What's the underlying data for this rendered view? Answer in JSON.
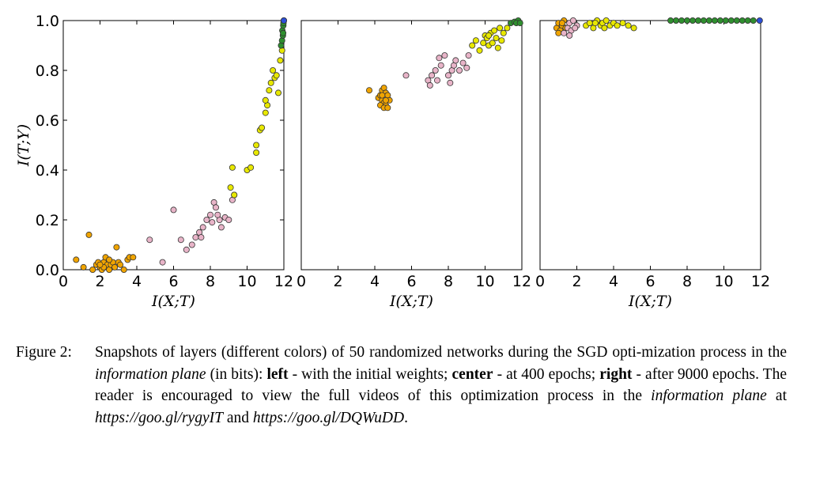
{
  "chart_data": [
    {
      "type": "scatter",
      "panel": "left",
      "xlabel": "I(X;T)",
      "ylabel": "I(T;Y)",
      "xlim": [
        0,
        12
      ],
      "ylim": [
        0,
        1.0
      ],
      "xticks": [
        "0",
        "2",
        "4",
        "6",
        "8",
        "10",
        "12"
      ],
      "yticks": [
        "0.0",
        "0.2",
        "0.4",
        "0.6",
        "0.8",
        "1.0"
      ],
      "grid": false,
      "series": [
        {
          "color": "#f0a400",
          "points": [
            [
              0.7,
              0.04
            ],
            [
              1.1,
              0.01
            ],
            [
              1.4,
              0.14
            ],
            [
              1.6,
              0.0
            ],
            [
              1.8,
              0.02
            ],
            [
              1.9,
              0.03
            ],
            [
              2.0,
              0.01
            ],
            [
              2.1,
              0.0
            ],
            [
              2.2,
              0.03
            ],
            [
              2.3,
              0.05
            ],
            [
              2.4,
              0.02
            ],
            [
              2.5,
              0.0
            ],
            [
              2.6,
              0.02
            ],
            [
              2.7,
              0.03
            ],
            [
              2.8,
              0.01
            ],
            [
              2.9,
              0.09
            ],
            [
              3.0,
              0.03
            ],
            [
              3.1,
              0.02
            ],
            [
              3.3,
              0.0
            ],
            [
              3.5,
              0.04
            ],
            [
              3.6,
              0.05
            ],
            [
              3.8,
              0.05
            ],
            [
              2.2,
              0.01
            ],
            [
              2.5,
              0.04
            ],
            [
              2.0,
              0.02
            ]
          ]
        },
        {
          "color": "#e8b4c8",
          "points": [
            [
              4.7,
              0.12
            ],
            [
              5.4,
              0.03
            ],
            [
              6.0,
              0.24
            ],
            [
              6.4,
              0.12
            ],
            [
              6.7,
              0.08
            ],
            [
              7.0,
              0.1
            ],
            [
              7.2,
              0.13
            ],
            [
              7.4,
              0.15
            ],
            [
              7.6,
              0.17
            ],
            [
              7.8,
              0.2
            ],
            [
              8.0,
              0.22
            ],
            [
              8.1,
              0.19
            ],
            [
              8.2,
              0.27
            ],
            [
              8.3,
              0.25
            ],
            [
              8.5,
              0.2
            ],
            [
              8.6,
              0.17
            ],
            [
              8.8,
              0.21
            ],
            [
              9.0,
              0.2
            ],
            [
              9.2,
              0.28
            ],
            [
              9.3,
              0.3
            ],
            [
              8.4,
              0.22
            ],
            [
              7.5,
              0.13
            ]
          ]
        },
        {
          "color": "#e8e800",
          "points": [
            [
              9.1,
              0.33
            ],
            [
              9.2,
              0.41
            ],
            [
              9.3,
              0.3
            ],
            [
              10.0,
              0.4
            ],
            [
              10.2,
              0.41
            ],
            [
              10.5,
              0.47
            ],
            [
              10.5,
              0.5
            ],
            [
              10.7,
              0.56
            ],
            [
              10.8,
              0.57
            ],
            [
              11.0,
              0.63
            ],
            [
              11.1,
              0.66
            ],
            [
              11.0,
              0.68
            ],
            [
              11.2,
              0.72
            ],
            [
              11.3,
              0.75
            ],
            [
              11.5,
              0.77
            ],
            [
              11.4,
              0.8
            ],
            [
              11.6,
              0.78
            ],
            [
              11.8,
              0.84
            ],
            [
              11.9,
              0.88
            ],
            [
              11.7,
              0.71
            ]
          ]
        },
        {
          "color": "#2f8f2f",
          "points": [
            [
              11.85,
              0.9
            ],
            [
              11.9,
              0.92
            ],
            [
              11.95,
              0.94
            ],
            [
              11.92,
              0.96
            ],
            [
              11.97,
              0.98
            ],
            [
              12.0,
              1.0
            ],
            [
              11.98,
              0.99
            ],
            [
              11.96,
              0.95
            ]
          ]
        },
        {
          "color": "#2c4fd8",
          "points": [
            [
              12.0,
              1.0
            ]
          ]
        }
      ]
    },
    {
      "type": "scatter",
      "panel": "center",
      "xlabel": "I(X;T)",
      "ylabel": "",
      "xlim": [
        0,
        12
      ],
      "ylim": [
        0,
        1.0
      ],
      "xticks": [
        "0",
        "2",
        "4",
        "6",
        "8",
        "10",
        "12"
      ],
      "yticks": [],
      "grid": false,
      "series": [
        {
          "color": "#f0a400",
          "points": [
            [
              3.7,
              0.72
            ],
            [
              4.2,
              0.69
            ],
            [
              4.3,
              0.7
            ],
            [
              4.4,
              0.72
            ],
            [
              4.5,
              0.73
            ],
            [
              4.6,
              0.71
            ],
            [
              4.4,
              0.68
            ],
            [
              4.5,
              0.67
            ],
            [
              4.6,
              0.66
            ],
            [
              4.7,
              0.7
            ],
            [
              4.8,
              0.68
            ],
            [
              4.3,
              0.66
            ],
            [
              4.5,
              0.65
            ],
            [
              4.6,
              0.68
            ],
            [
              4.4,
              0.7
            ],
            [
              4.7,
              0.65
            ]
          ]
        },
        {
          "color": "#e8b4c8",
          "points": [
            [
              5.7,
              0.78
            ],
            [
              6.9,
              0.76
            ],
            [
              7.0,
              0.74
            ],
            [
              7.1,
              0.78
            ],
            [
              7.3,
              0.8
            ],
            [
              7.4,
              0.76
            ],
            [
              7.6,
              0.82
            ],
            [
              7.8,
              0.86
            ],
            [
              8.0,
              0.78
            ],
            [
              8.2,
              0.8
            ],
            [
              8.3,
              0.82
            ],
            [
              8.4,
              0.84
            ],
            [
              8.6,
              0.8
            ],
            [
              8.8,
              0.83
            ],
            [
              9.0,
              0.81
            ],
            [
              9.1,
              0.86
            ],
            [
              7.5,
              0.85
            ],
            [
              8.1,
              0.75
            ]
          ]
        },
        {
          "color": "#e8e800",
          "points": [
            [
              9.3,
              0.9
            ],
            [
              9.5,
              0.92
            ],
            [
              9.7,
              0.88
            ],
            [
              9.9,
              0.91
            ],
            [
              10.0,
              0.94
            ],
            [
              10.1,
              0.93
            ],
            [
              10.2,
              0.9
            ],
            [
              10.3,
              0.95
            ],
            [
              10.4,
              0.91
            ],
            [
              10.5,
              0.96
            ],
            [
              10.6,
              0.93
            ],
            [
              10.8,
              0.97
            ],
            [
              10.9,
              0.92
            ],
            [
              11.0,
              0.95
            ],
            [
              11.2,
              0.97
            ],
            [
              10.7,
              0.89
            ],
            [
              10.2,
              0.94
            ]
          ]
        },
        {
          "color": "#2f8f2f",
          "points": [
            [
              11.4,
              0.99
            ],
            [
              11.6,
              0.995
            ],
            [
              11.8,
              1.0
            ],
            [
              11.7,
              0.99
            ],
            [
              11.9,
              0.99
            ]
          ]
        }
      ]
    },
    {
      "type": "scatter",
      "panel": "right",
      "xlabel": "I(X;T)",
      "ylabel": "",
      "xlim": [
        0,
        12
      ],
      "ylim": [
        0,
        1.0
      ],
      "xticks": [
        "0",
        "2",
        "4",
        "6",
        "8",
        "10",
        "12"
      ],
      "yticks": [],
      "grid": false,
      "series": [
        {
          "color": "#f0a400",
          "points": [
            [
              0.9,
              0.97
            ],
            [
              1.0,
              0.99
            ],
            [
              1.1,
              0.96
            ],
            [
              1.2,
              0.98
            ],
            [
              1.3,
              1.0
            ],
            [
              1.4,
              0.97
            ],
            [
              1.0,
              0.95
            ],
            [
              1.2,
              0.99
            ]
          ]
        },
        {
          "color": "#e8b4c8",
          "points": [
            [
              1.3,
              0.95
            ],
            [
              1.5,
              0.97
            ],
            [
              1.6,
              0.99
            ],
            [
              1.7,
              0.96
            ],
            [
              1.8,
              1.0
            ],
            [
              2.0,
              0.98
            ],
            [
              1.6,
              0.94
            ],
            [
              1.9,
              0.97
            ]
          ]
        },
        {
          "color": "#e8e800",
          "points": [
            [
              2.5,
              0.98
            ],
            [
              2.7,
              0.99
            ],
            [
              2.9,
              0.97
            ],
            [
              3.1,
              1.0
            ],
            [
              3.3,
              0.98
            ],
            [
              3.4,
              0.99
            ],
            [
              3.6,
              1.0
            ],
            [
              3.8,
              0.98
            ],
            [
              4.0,
              0.99
            ],
            [
              4.2,
              0.98
            ],
            [
              4.5,
              0.99
            ],
            [
              4.8,
              0.98
            ],
            [
              5.1,
              0.97
            ],
            [
              3.0,
              0.99
            ],
            [
              3.5,
              0.97
            ]
          ]
        },
        {
          "color": "#2f8f2f",
          "points": [
            [
              7.1,
              1.0
            ],
            [
              7.4,
              1.0
            ],
            [
              7.7,
              1.0
            ],
            [
              8.0,
              1.0
            ],
            [
              8.3,
              1.0
            ],
            [
              8.6,
              1.0
            ],
            [
              8.9,
              1.0
            ],
            [
              9.2,
              1.0
            ],
            [
              9.5,
              1.0
            ],
            [
              9.8,
              1.0
            ],
            [
              10.1,
              1.0
            ],
            [
              10.4,
              1.0
            ],
            [
              10.7,
              1.0
            ],
            [
              11.0,
              1.0
            ],
            [
              11.3,
              1.0
            ],
            [
              11.6,
              1.0
            ]
          ]
        },
        {
          "color": "#2c4fd8",
          "points": [
            [
              11.95,
              1.0
            ]
          ]
        }
      ]
    }
  ],
  "caption": {
    "label": "Figure 2:",
    "t1": "Snapshots of layers (different colors) of 50 randomized networks during the SGD opti-mization process in the ",
    "e1": "information plane",
    "t2": " (in bits): ",
    "b1": "left",
    "t3": " - with the initial weights; ",
    "b2": "center",
    "t4": " - at 400 epochs; ",
    "b3": "right",
    "t5": " - after 9000 epochs.  The reader is encouraged to view the full videos of this optimization process in the ",
    "e2": "information plane",
    "t6": " at ",
    "url1": "https://goo.gl/rygyIT",
    "t7": " and ",
    "url2": "https://goo.gl/DQWuDD",
    "t8": "."
  }
}
